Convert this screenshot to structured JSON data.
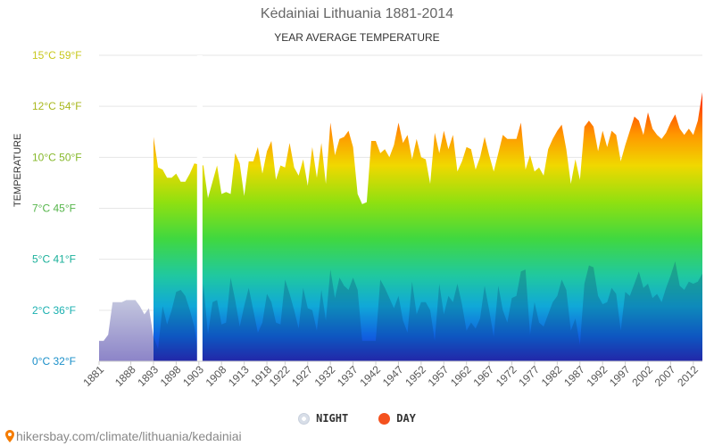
{
  "chart_data": {
    "type": "area",
    "title": "Kėdainiai Lithuania 1881-2014",
    "subtitle": "YEAR AVERAGE TEMPERATURE",
    "ylabel": "TEMPERATURE",
    "ylim": [
      0,
      15
    ],
    "y_ticks": [
      {
        "value": 0,
        "label": "0°C 32°F",
        "color": "#1a8fc9"
      },
      {
        "value": 2.5,
        "label": "2°C 36°F",
        "color": "#1ab0b0"
      },
      {
        "value": 5,
        "label": "5°C 41°F",
        "color": "#1ab09a"
      },
      {
        "value": 7.5,
        "label": "7°C 45°F",
        "color": "#55b54a"
      },
      {
        "value": 10,
        "label": "10°C 50°F",
        "color": "#86b82a"
      },
      {
        "value": 12.5,
        "label": "12°C 54°F",
        "color": "#a8b71c"
      },
      {
        "value": 15,
        "label": "15°C 59°F",
        "color": "#c8c81e"
      }
    ],
    "x_ticks": [
      "1881",
      "1888",
      "1893",
      "1898",
      "1903",
      "1908",
      "1913",
      "1918",
      "1922",
      "1927",
      "1932",
      "1937",
      "1942",
      "1947",
      "1952",
      "1957",
      "1962",
      "1967",
      "1972",
      "1977",
      "1982",
      "1987",
      "1992",
      "1997",
      "2002",
      "2007",
      "2012"
    ],
    "xlim": [
      1881,
      2014
    ],
    "grid": true,
    "legend_position": "bottom",
    "series": [
      {
        "name": "NIGHT",
        "color": "#e0e4ec",
        "points": [
          [
            1881,
            1.0
          ],
          [
            1882,
            1.0
          ],
          [
            1883,
            1.3
          ],
          [
            1884,
            2.9
          ],
          [
            1885,
            2.9
          ],
          [
            1886,
            2.9
          ],
          [
            1887,
            3.0
          ],
          [
            1888,
            3.0
          ],
          [
            1889,
            3.0
          ],
          [
            1890,
            2.7
          ],
          [
            1891,
            2.3
          ],
          [
            1892,
            2.6
          ],
          [
            1893,
            1.2
          ],
          [
            1894,
            0.6
          ],
          [
            1895,
            2.7
          ],
          [
            1896,
            1.8
          ],
          [
            1897,
            2.5
          ],
          [
            1898,
            3.4
          ],
          [
            1899,
            3.5
          ],
          [
            1900,
            3.2
          ],
          [
            1901,
            2.5
          ],
          [
            1902,
            1.7
          ],
          [
            1903,
            0.1
          ],
          [
            1904,
            3.8
          ],
          [
            1905,
            1.3
          ],
          [
            1906,
            2.9
          ],
          [
            1907,
            3.0
          ],
          [
            1908,
            1.8
          ],
          [
            1909,
            1.9
          ],
          [
            1910,
            4.1
          ],
          [
            1911,
            3.0
          ],
          [
            1912,
            1.7
          ],
          [
            1913,
            2.7
          ],
          [
            1914,
            3.6
          ],
          [
            1915,
            2.5
          ],
          [
            1916,
            1.4
          ],
          [
            1917,
            1.9
          ],
          [
            1918,
            3.3
          ],
          [
            1919,
            2.9
          ],
          [
            1920,
            1.9
          ],
          [
            1921,
            1.8
          ],
          [
            1922,
            4.0
          ],
          [
            1923,
            3.3
          ],
          [
            1924,
            2.5
          ],
          [
            1925,
            1.6
          ],
          [
            1926,
            3.6
          ],
          [
            1927,
            2.6
          ],
          [
            1928,
            2.5
          ],
          [
            1929,
            1.5
          ],
          [
            1930,
            3.5
          ],
          [
            1931,
            2.0
          ],
          [
            1932,
            4.5
          ],
          [
            1933,
            3.1
          ],
          [
            1934,
            4.1
          ],
          [
            1935,
            3.7
          ],
          [
            1936,
            3.5
          ],
          [
            1937,
            4.1
          ],
          [
            1938,
            3.5
          ],
          [
            1939,
            1.0
          ],
          [
            1940,
            1.0
          ],
          [
            1941,
            1.0
          ],
          [
            1942,
            1.0
          ],
          [
            1943,
            4.0
          ],
          [
            1944,
            3.6
          ],
          [
            1945,
            3.1
          ],
          [
            1946,
            2.6
          ],
          [
            1947,
            3.2
          ],
          [
            1948,
            2.0
          ],
          [
            1949,
            1.4
          ],
          [
            1950,
            3.9
          ],
          [
            1951,
            2.3
          ],
          [
            1952,
            2.9
          ],
          [
            1953,
            2.9
          ],
          [
            1954,
            2.5
          ],
          [
            1955,
            1.0
          ],
          [
            1956,
            3.8
          ],
          [
            1957,
            2.3
          ],
          [
            1958,
            3.2
          ],
          [
            1959,
            2.9
          ],
          [
            1960,
            3.8
          ],
          [
            1961,
            2.8
          ],
          [
            1962,
            1.5
          ],
          [
            1963,
            1.9
          ],
          [
            1964,
            1.6
          ],
          [
            1965,
            2.1
          ],
          [
            1966,
            3.7
          ],
          [
            1967,
            2.5
          ],
          [
            1968,
            1.2
          ],
          [
            1969,
            3.7
          ],
          [
            1970,
            2.5
          ],
          [
            1971,
            1.9
          ],
          [
            1972,
            3.1
          ],
          [
            1973,
            3.2
          ],
          [
            1974,
            4.4
          ],
          [
            1975,
            4.5
          ],
          [
            1976,
            1.3
          ],
          [
            1977,
            2.9
          ],
          [
            1978,
            1.9
          ],
          [
            1979,
            1.7
          ],
          [
            1980,
            2.3
          ],
          [
            1981,
            2.9
          ],
          [
            1982,
            3.2
          ],
          [
            1983,
            4.0
          ],
          [
            1984,
            3.5
          ],
          [
            1985,
            1.5
          ],
          [
            1986,
            2.1
          ],
          [
            1987,
            0.8
          ],
          [
            1988,
            3.8
          ],
          [
            1989,
            4.7
          ],
          [
            1990,
            4.6
          ],
          [
            1991,
            3.2
          ],
          [
            1992,
            2.8
          ],
          [
            1993,
            2.9
          ],
          [
            1994,
            3.6
          ],
          [
            1995,
            3.3
          ],
          [
            1996,
            1.5
          ],
          [
            1997,
            3.4
          ],
          [
            1998,
            3.2
          ],
          [
            1999,
            3.8
          ],
          [
            2000,
            4.4
          ],
          [
            2001,
            3.6
          ],
          [
            2002,
            3.8
          ],
          [
            2003,
            3.1
          ],
          [
            2004,
            3.3
          ],
          [
            2005,
            2.9
          ],
          [
            2006,
            3.6
          ],
          [
            2007,
            4.2
          ],
          [
            2008,
            4.9
          ],
          [
            2009,
            3.7
          ],
          [
            2010,
            3.5
          ],
          [
            2011,
            3.9
          ],
          [
            2012,
            3.8
          ],
          [
            2013,
            3.9
          ],
          [
            2014,
            4.3
          ]
        ]
      },
      {
        "name": "DAY",
        "color": "#f4511e",
        "points": [
          [
            1893,
            11.0
          ],
          [
            1894,
            9.5
          ],
          [
            1895,
            9.4
          ],
          [
            1896,
            9.0
          ],
          [
            1897,
            9.0
          ],
          [
            1898,
            9.2
          ],
          [
            1899,
            8.8
          ],
          [
            1900,
            8.8
          ],
          [
            1901,
            9.2
          ],
          [
            1902,
            9.7
          ],
          [
            1904,
            9.6
          ],
          [
            1905,
            8.0
          ],
          [
            1906,
            8.8
          ],
          [
            1907,
            9.6
          ],
          [
            1908,
            8.2
          ],
          [
            1909,
            8.3
          ],
          [
            1910,
            8.2
          ],
          [
            1911,
            10.2
          ],
          [
            1912,
            9.7
          ],
          [
            1913,
            8.1
          ],
          [
            1914,
            9.8
          ],
          [
            1915,
            9.8
          ],
          [
            1916,
            10.5
          ],
          [
            1917,
            9.2
          ],
          [
            1918,
            10.3
          ],
          [
            1919,
            10.8
          ],
          [
            1920,
            8.9
          ],
          [
            1921,
            9.6
          ],
          [
            1922,
            9.5
          ],
          [
            1923,
            10.7
          ],
          [
            1924,
            9.5
          ],
          [
            1925,
            9.1
          ],
          [
            1926,
            9.9
          ],
          [
            1927,
            8.6
          ],
          [
            1928,
            10.5
          ],
          [
            1929,
            9.0
          ],
          [
            1930,
            10.7
          ],
          [
            1931,
            8.7
          ],
          [
            1932,
            11.7
          ],
          [
            1933,
            10.1
          ],
          [
            1934,
            10.9
          ],
          [
            1935,
            11.0
          ],
          [
            1936,
            11.3
          ],
          [
            1937,
            10.5
          ],
          [
            1938,
            8.2
          ],
          [
            1939,
            7.7
          ],
          [
            1940,
            7.8
          ],
          [
            1941,
            10.8
          ],
          [
            1942,
            10.8
          ],
          [
            1943,
            10.2
          ],
          [
            1944,
            10.4
          ],
          [
            1945,
            10.0
          ],
          [
            1946,
            10.6
          ],
          [
            1947,
            11.7
          ],
          [
            1948,
            10.7
          ],
          [
            1949,
            11.1
          ],
          [
            1950,
            9.9
          ],
          [
            1951,
            10.9
          ],
          [
            1952,
            10.0
          ],
          [
            1953,
            9.9
          ],
          [
            1954,
            8.7
          ],
          [
            1955,
            11.2
          ],
          [
            1956,
            10.2
          ],
          [
            1957,
            11.3
          ],
          [
            1958,
            10.4
          ],
          [
            1959,
            11.1
          ],
          [
            1960,
            9.3
          ],
          [
            1961,
            9.8
          ],
          [
            1962,
            10.5
          ],
          [
            1963,
            10.4
          ],
          [
            1964,
            9.4
          ],
          [
            1965,
            10.0
          ],
          [
            1966,
            11.0
          ],
          [
            1967,
            10.1
          ],
          [
            1968,
            9.3
          ],
          [
            1969,
            10.2
          ],
          [
            1970,
            11.1
          ],
          [
            1971,
            10.9
          ],
          [
            1972,
            10.9
          ],
          [
            1973,
            10.9
          ],
          [
            1974,
            11.7
          ],
          [
            1975,
            9.4
          ],
          [
            1976,
            10.1
          ],
          [
            1977,
            9.3
          ],
          [
            1978,
            9.5
          ],
          [
            1979,
            9.1
          ],
          [
            1980,
            10.4
          ],
          [
            1981,
            10.9
          ],
          [
            1982,
            11.3
          ],
          [
            1983,
            11.6
          ],
          [
            1984,
            10.4
          ],
          [
            1985,
            8.7
          ],
          [
            1986,
            9.9
          ],
          [
            1987,
            8.9
          ],
          [
            1988,
            11.5
          ],
          [
            1989,
            11.8
          ],
          [
            1990,
            11.5
          ],
          [
            1991,
            10.3
          ],
          [
            1992,
            11.3
          ],
          [
            1993,
            10.5
          ],
          [
            1994,
            11.3
          ],
          [
            1995,
            11.1
          ],
          [
            1996,
            9.8
          ],
          [
            1997,
            10.6
          ],
          [
            1998,
            11.3
          ],
          [
            1999,
            12.0
          ],
          [
            2000,
            11.8
          ],
          [
            2001,
            11.1
          ],
          [
            2002,
            12.2
          ],
          [
            2003,
            11.4
          ],
          [
            2004,
            11.1
          ],
          [
            2005,
            10.9
          ],
          [
            2006,
            11.2
          ],
          [
            2007,
            11.7
          ],
          [
            2008,
            12.1
          ],
          [
            2009,
            11.4
          ],
          [
            2010,
            11.1
          ],
          [
            2011,
            11.4
          ],
          [
            2012,
            11.1
          ],
          [
            2013,
            11.8
          ],
          [
            2014,
            13.2
          ]
        ]
      }
    ]
  },
  "legend": {
    "night": "NIGHT",
    "day": "DAY"
  },
  "footer": {
    "url": "hikersbay.com/climate/lithuania/kedainiai",
    "pin_icon": "map-pin-icon"
  }
}
